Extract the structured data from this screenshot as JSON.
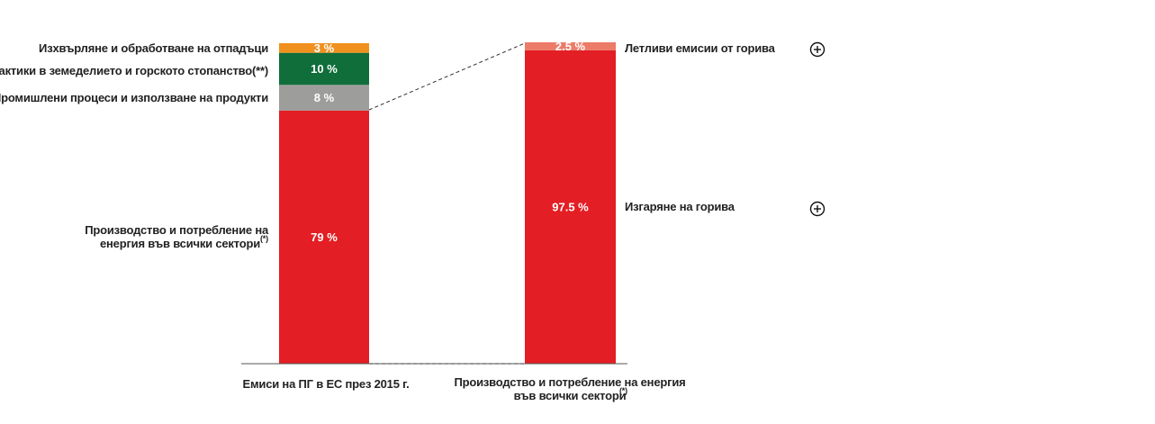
{
  "chart_data": [
    {
      "type": "bar",
      "stacked": true,
      "category": "Емиси на ПГ в ЕС през 2015 г.",
      "segments": [
        {
          "label": "Производство и потребление на енергия във всички сектори",
          "label_sup": "(*)",
          "value": 79,
          "value_label": "79 %",
          "color": "#e31e24"
        },
        {
          "label": "Промишлени процеси и използване на продукти",
          "value": 8,
          "value_label": "8 %",
          "color": "#9d9d9c"
        },
        {
          "label": "Практики в земеделието и горското стопанство(**)",
          "value": 10,
          "value_label": "10 %",
          "color": "#0f6e3a"
        },
        {
          "label": "Изхвърляне и обработване на отпадъци",
          "value": 3,
          "value_label": "3 %",
          "color": "#f0901e"
        }
      ]
    },
    {
      "type": "bar",
      "stacked": true,
      "category": "Производство и потребление на енергия във всички сектори",
      "category_sup": "(*)",
      "segments": [
        {
          "label": "Изгаряне на горива",
          "value": 97.5,
          "value_label": "97.5 %",
          "color": "#e31e24"
        },
        {
          "label": "Летливи емисии от горива",
          "value": 2.5,
          "value_label": "2.5 %",
          "color": "#ec7b68"
        }
      ]
    }
  ],
  "expand_icon": "plus-circle-icon"
}
